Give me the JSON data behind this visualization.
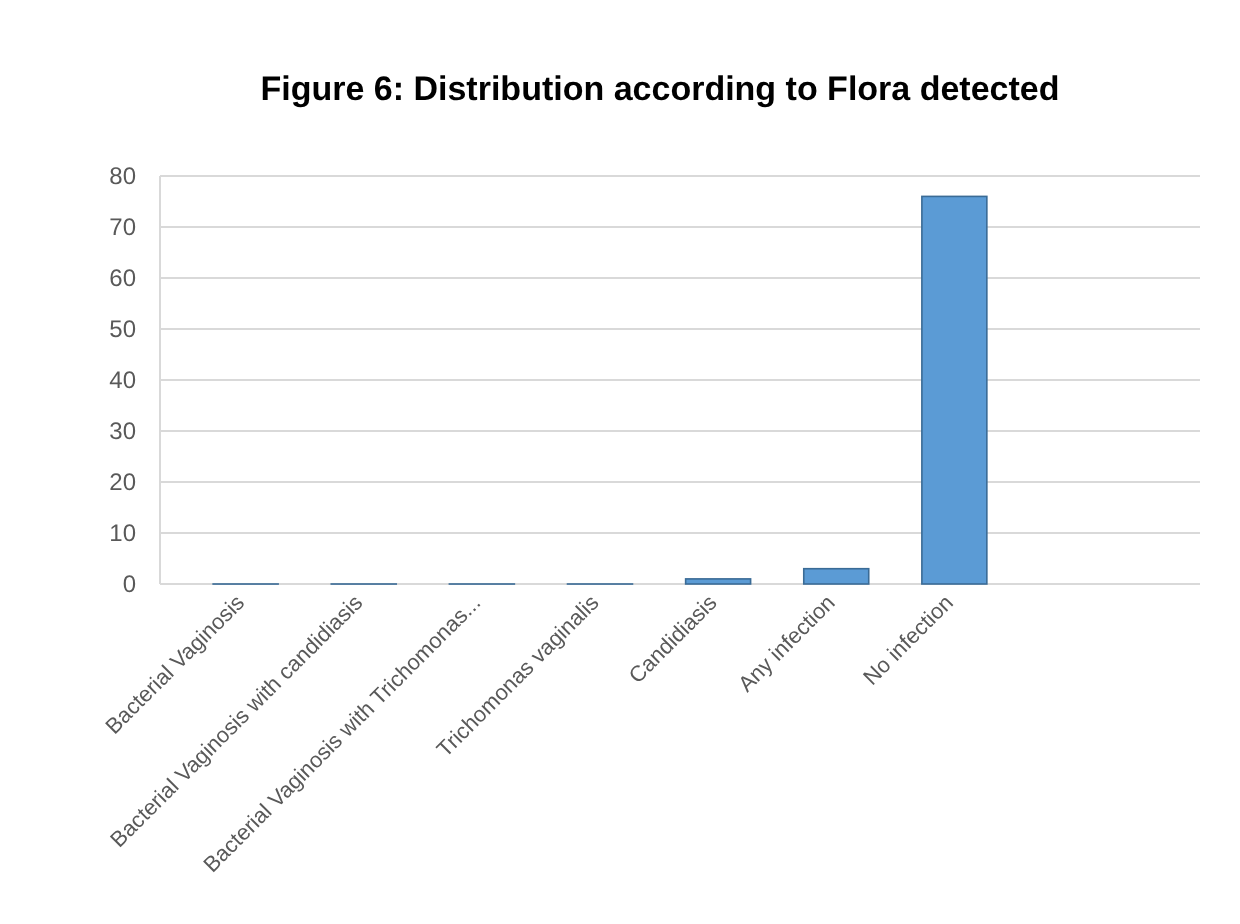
{
  "chart_data": {
    "type": "bar",
    "title": "Figure 6: Distribution according to Flora detected",
    "categories": [
      "Bacterial Vaginosis",
      "Bacterial Vaginosis with candidiasis",
      "Bacterial Vaginosis with Trichomonas...",
      "Trichomonas vaginalis",
      "Candidiasis",
      "Any infection",
      "No infection"
    ],
    "values": [
      0,
      0,
      0,
      0,
      1,
      3,
      76
    ],
    "color": "#5b9bd5",
    "ylim": [
      0,
      80
    ],
    "yticks": [
      0,
      10,
      20,
      30,
      40,
      50,
      60,
      70,
      80
    ],
    "grid": true
  }
}
